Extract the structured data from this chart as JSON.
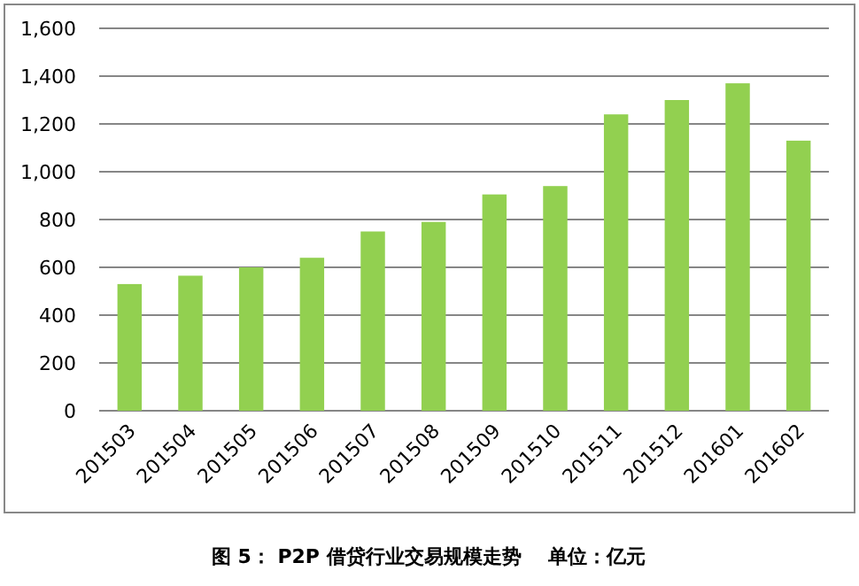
{
  "chart_data": {
    "type": "bar",
    "title": "图 5： P2P 借贷行业交易规模走势    单位：亿元",
    "categories": [
      "201503",
      "201504",
      "201505",
      "201506",
      "201507",
      "201508",
      "201509",
      "201510",
      "201511",
      "201512",
      "201601",
      "201602"
    ],
    "values": [
      530,
      565,
      600,
      640,
      750,
      790,
      905,
      940,
      1240,
      1300,
      1370,
      1130
    ],
    "color": "#92d050",
    "ylim": [
      0,
      1600
    ],
    "yticks": [
      {
        "value": 0,
        "label": "0"
      },
      {
        "value": 200,
        "label": "200"
      },
      {
        "value": 400,
        "label": "400"
      },
      {
        "value": 600,
        "label": "600"
      },
      {
        "value": 800,
        "label": "800"
      },
      {
        "value": 1000,
        "label": "1,000"
      },
      {
        "value": 1200,
        "label": "1,200"
      },
      {
        "value": 1400,
        "label": "1,400"
      },
      {
        "value": 1600,
        "label": "1,600"
      }
    ],
    "grid": "y"
  }
}
